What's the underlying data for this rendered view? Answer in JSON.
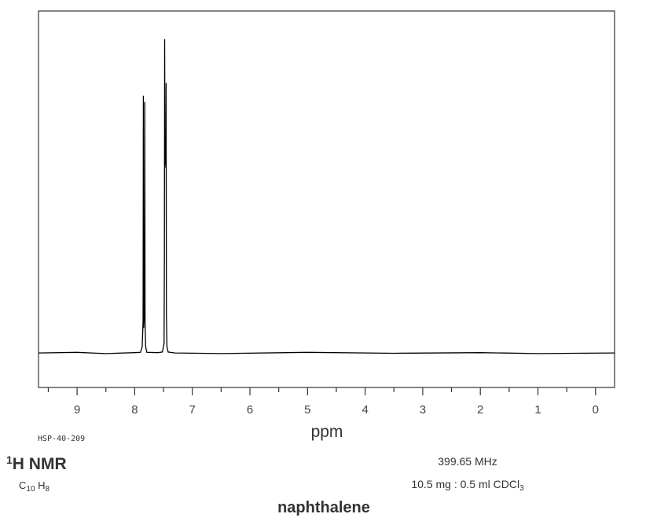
{
  "chart_data": {
    "type": "line",
    "x_label": "ppm",
    "code": "HSP-40-209",
    "nucleus": [
      "1",
      "H NMR"
    ],
    "formula": [
      "C",
      "10",
      " H",
      "8"
    ],
    "frequency": "399.65 MHz",
    "sample": [
      "10.5 mg : 0.5 ml CDCl",
      "3"
    ],
    "compound": "naphthalene",
    "color": "#000000",
    "x": [
      9.67,
      9.0,
      8.5,
      8.0,
      7.9,
      7.87,
      7.855,
      7.85,
      7.845,
      7.84,
      7.83,
      7.825,
      7.82,
      7.81,
      7.79,
      7.6,
      7.52,
      7.49,
      7.485,
      7.48,
      7.475,
      7.47,
      7.46,
      7.455,
      7.45,
      7.44,
      7.42,
      7.3,
      6.5,
      5.0,
      3.5,
      2.0,
      1.0,
      -0.33
    ],
    "values": [
      0,
      0.002,
      -0.002,
      0.001,
      0.002,
      0.02,
      0.1,
      0.82,
      0.08,
      0.1,
      0.12,
      0.8,
      0.09,
      0.02,
      0.002,
      0.001,
      0.003,
      0.03,
      0.3,
      1.0,
      0.6,
      0.62,
      0.59,
      0.86,
      0.12,
      0.02,
      0.003,
      0,
      -0.002,
      0.002,
      -0.001,
      0.001,
      -0.002,
      0
    ],
    "xlim": [
      9.67,
      -0.33
    ],
    "ylim": [
      -0.11,
      1.09
    ],
    "xticks": [
      9,
      8,
      7,
      6,
      5,
      4,
      3,
      2,
      1,
      0
    ],
    "xminorticks": [
      9.5,
      8.5,
      7.5,
      6.5,
      5.5,
      4.5,
      3.5,
      2.5,
      1.5,
      0.5
    ]
  }
}
